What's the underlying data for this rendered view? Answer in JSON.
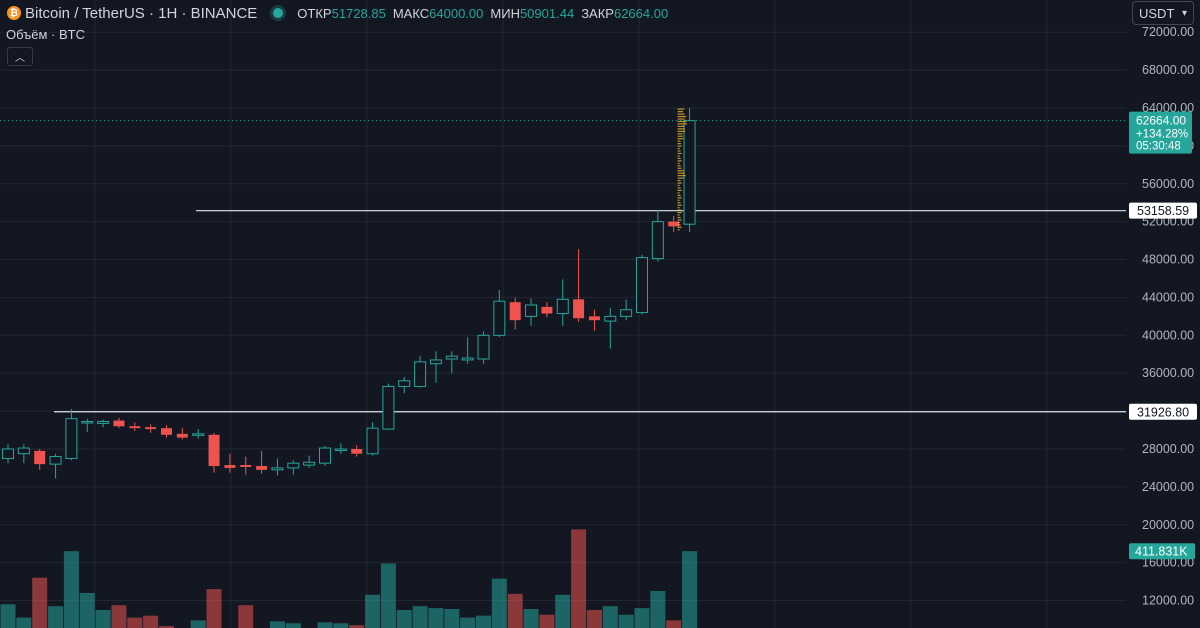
{
  "header": {
    "symbol": "Bitcoin / TetherUS · 1H · BINANCE",
    "icon": "bitcoin-icon",
    "ohlc": [
      {
        "label": "ОТКР",
        "value": "51728.85"
      },
      {
        "label": "МАКС",
        "value": "64000.00"
      },
      {
        "label": "МИН",
        "value": "50901.44"
      },
      {
        "label": "ЗАКР",
        "value": "62664.00"
      }
    ],
    "currency": "USDT",
    "volume_label": "Объём · BTC"
  },
  "colors": {
    "up": "#26a69a",
    "down": "#ef5350",
    "vol_up": "#26a69a",
    "vol_down": "#ef5350",
    "background": "#131722",
    "grid": "#232733"
  },
  "chart_data": {
    "type": "candlestick",
    "price_ticks": [
      72000,
      68000,
      64000,
      60000,
      56000,
      52000,
      48000,
      44000,
      40000,
      36000,
      32000,
      28000,
      24000,
      20000,
      16000,
      12000
    ],
    "price_tick_labels": [
      "72000.00",
      "68000.00",
      "64000.00",
      "60000.00",
      "56000.00",
      "52000.00",
      "48000.00",
      "44000.00",
      "40000.00",
      "36000.00",
      "32000.00",
      "28000.00",
      "24000.00",
      "20000.00",
      "16000.00",
      "12000.00"
    ],
    "ylim": [
      9100,
      75400
    ],
    "candles": [
      {
        "o": 27000,
        "h": 28500,
        "l": 26500,
        "c": 28000
      },
      {
        "o": 27500,
        "h": 28500,
        "l": 26500,
        "c": 28100
      },
      {
        "o": 27800,
        "h": 28000,
        "l": 25800,
        "c": 26400
      },
      {
        "o": 26400,
        "h": 27500,
        "l": 24900,
        "c": 27200
      },
      {
        "o": 27000,
        "h": 32200,
        "l": 26800,
        "c": 31200
      },
      {
        "o": 30800,
        "h": 31200,
        "l": 29800,
        "c": 30900
      },
      {
        "o": 30700,
        "h": 31100,
        "l": 30300,
        "c": 30900
      },
      {
        "o": 31000,
        "h": 31300,
        "l": 30200,
        "c": 30400
      },
      {
        "o": 30400,
        "h": 30800,
        "l": 29900,
        "c": 30200
      },
      {
        "o": 30300,
        "h": 30600,
        "l": 29700,
        "c": 30100
      },
      {
        "o": 30200,
        "h": 30500,
        "l": 29200,
        "c": 29500
      },
      {
        "o": 29600,
        "h": 30200,
        "l": 29000,
        "c": 29200
      },
      {
        "o": 29500,
        "h": 30100,
        "l": 29100,
        "c": 29600
      },
      {
        "o": 29500,
        "h": 29700,
        "l": 25500,
        "c": 26200
      },
      {
        "o": 26300,
        "h": 27500,
        "l": 25500,
        "c": 26000
      },
      {
        "o": 26300,
        "h": 27200,
        "l": 25300,
        "c": 26100
      },
      {
        "o": 26200,
        "h": 27800,
        "l": 25400,
        "c": 25800
      },
      {
        "o": 25800,
        "h": 27000,
        "l": 25200,
        "c": 26000
      },
      {
        "o": 26000,
        "h": 26800,
        "l": 25300,
        "c": 26500
      },
      {
        "o": 26300,
        "h": 27300,
        "l": 26000,
        "c": 26600
      },
      {
        "o": 26500,
        "h": 28300,
        "l": 26200,
        "c": 28100
      },
      {
        "o": 28000,
        "h": 28600,
        "l": 27500,
        "c": 28000
      },
      {
        "o": 28000,
        "h": 28400,
        "l": 27200,
        "c": 27500
      },
      {
        "o": 27500,
        "h": 30800,
        "l": 27300,
        "c": 30200
      },
      {
        "o": 30100,
        "h": 34900,
        "l": 30000,
        "c": 34600
      },
      {
        "o": 34600,
        "h": 35600,
        "l": 33900,
        "c": 35200
      },
      {
        "o": 34600,
        "h": 37800,
        "l": 34500,
        "c": 37200
      },
      {
        "o": 37000,
        "h": 38300,
        "l": 35000,
        "c": 37400
      },
      {
        "o": 37500,
        "h": 38300,
        "l": 36000,
        "c": 37800
      },
      {
        "o": 37400,
        "h": 39800,
        "l": 37000,
        "c": 37600
      },
      {
        "o": 37500,
        "h": 40400,
        "l": 37000,
        "c": 40000
      },
      {
        "o": 40000,
        "h": 44800,
        "l": 39800,
        "c": 43600
      },
      {
        "o": 43500,
        "h": 44000,
        "l": 40600,
        "c": 41600
      },
      {
        "o": 42000,
        "h": 43900,
        "l": 41000,
        "c": 43200
      },
      {
        "o": 43000,
        "h": 43500,
        "l": 41900,
        "c": 42300
      },
      {
        "o": 42300,
        "h": 45900,
        "l": 41000,
        "c": 43800
      },
      {
        "o": 43800,
        "h": 49100,
        "l": 41400,
        "c": 41800
      },
      {
        "o": 42000,
        "h": 42700,
        "l": 40500,
        "c": 41600
      },
      {
        "o": 41500,
        "h": 42900,
        "l": 38600,
        "c": 42000
      },
      {
        "o": 42000,
        "h": 43800,
        "l": 41600,
        "c": 42700
      },
      {
        "o": 42400,
        "h": 48500,
        "l": 42200,
        "c": 48200
      },
      {
        "o": 48100,
        "h": 53200,
        "l": 47800,
        "c": 52000
      },
      {
        "o": 52000,
        "h": 52600,
        "l": 50900,
        "c": 51500
      },
      {
        "o": 51728.85,
        "h": 64000,
        "l": 50901.44,
        "c": 62664
      }
    ],
    "volume_ticks": [
      20000,
      16000,
      12000
    ],
    "volume_values": [
      13000,
      11600,
      15800,
      12800,
      18600,
      14200,
      12400,
      12900,
      11600,
      11800,
      10700,
      10200,
      11300,
      14600,
      8500,
      12900,
      10300,
      11200,
      11000,
      10200,
      11100,
      11000,
      10800,
      14000,
      17300,
      12400,
      12800,
      12600,
      12500,
      11600,
      11800,
      15700,
      14100,
      12500,
      11900,
      14000,
      20900,
      12400,
      12800,
      11900,
      12600,
      14400,
      11300,
      18600
    ],
    "volume_ylim": [
      10500,
      22100
    ],
    "horizontal_lines": [
      {
        "value": 53158.59,
        "label": "53158.59"
      },
      {
        "value": 31926.8,
        "label": "31926.80"
      }
    ],
    "last_price": {
      "value": 62664,
      "label": "62664.00",
      "change": "+134.28%",
      "timer": "05:30:48"
    },
    "last_volume_label": "411.831K"
  }
}
